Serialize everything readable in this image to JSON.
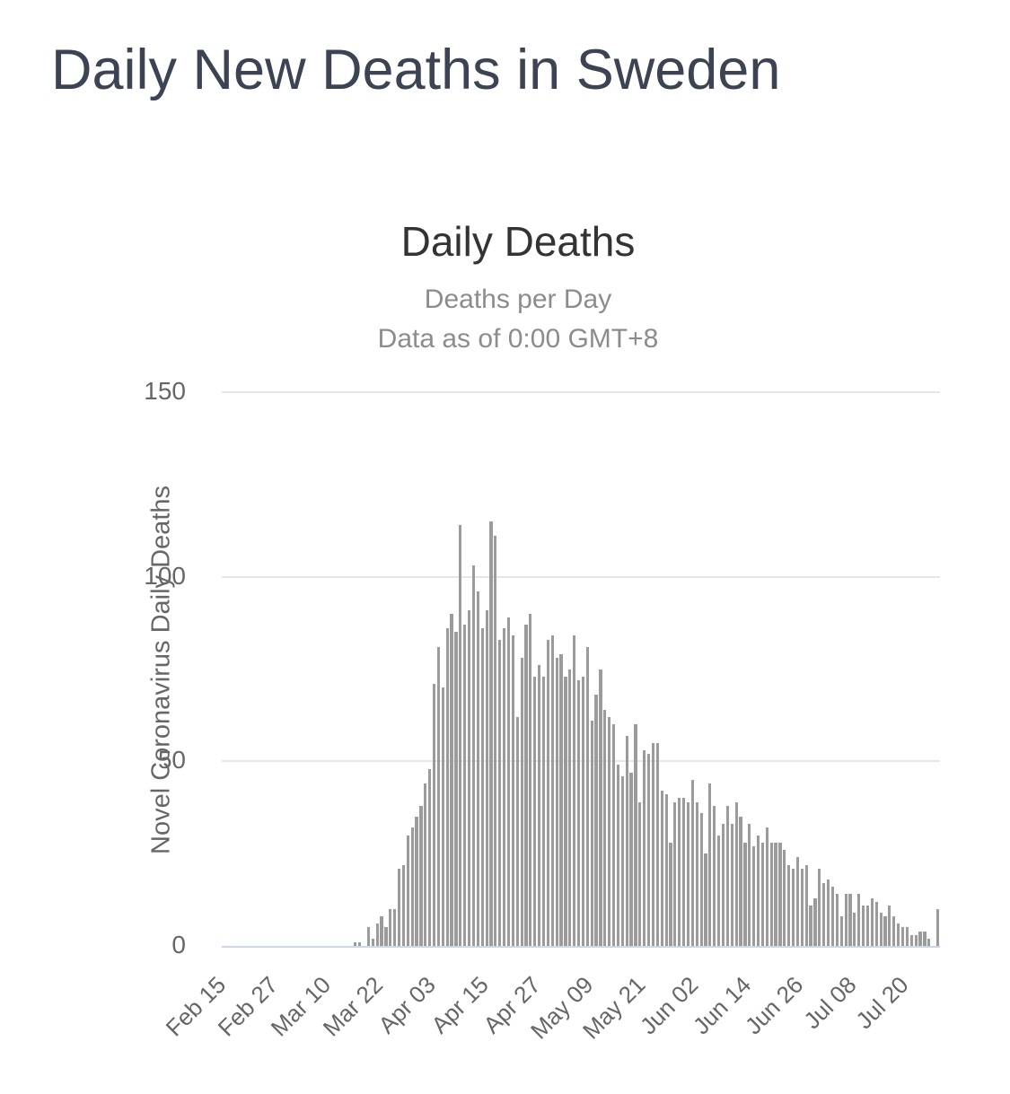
{
  "page": {
    "title": "Daily New Deaths in Sweden"
  },
  "chart": {
    "title": "Daily Deaths",
    "subtitle_line1": "Deaths per Day",
    "subtitle_line2": "Data as of 0:00 GMT+8",
    "y_axis_title": "Novel Coronavirus Daily Deaths"
  },
  "colors": {
    "page_title_text": "#3C4353",
    "chart_title_text": "#333333",
    "subtitle_text": "#8C8C8C",
    "axis_text": "#666666",
    "bar": "#9B9B9B",
    "gridline": "#E6E6E6",
    "axis_line": "#CCD6EB"
  },
  "chart_data": {
    "type": "bar",
    "title": "Daily Deaths",
    "subtitle": [
      "Deaths per Day",
      "Data as of 0:00 GMT+8"
    ],
    "ylabel": "Novel Coronavirus Daily Deaths",
    "ylim": [
      0,
      150
    ],
    "yticks": [
      0,
      50,
      100,
      150
    ],
    "grid": true,
    "legend": false,
    "x_start": "Feb 15",
    "x_end": "Jul 27",
    "xtick_every_days": 12,
    "xtick_labels": [
      "Feb 15",
      "Feb 27",
      "Mar 10",
      "Mar 22",
      "Apr 03",
      "Apr 15",
      "Apr 27",
      "May 09",
      "May 21",
      "Jun 02",
      "Jun 14",
      "Jun 26",
      "Jul 08",
      "Jul 20"
    ],
    "bar_color": "#9B9B9B",
    "values": [
      0,
      0,
      0,
      0,
      0,
      0,
      0,
      0,
      0,
      0,
      0,
      0,
      0,
      0,
      0,
      0,
      0,
      0,
      0,
      0,
      0,
      0,
      0,
      0,
      0,
      0,
      0,
      0,
      0,
      0,
      1,
      1,
      0,
      5,
      2,
      6,
      8,
      5,
      10,
      10,
      21,
      22,
      30,
      32,
      35,
      38,
      44,
      48,
      71,
      81,
      70,
      86,
      90,
      85,
      114,
      87,
      91,
      103,
      96,
      86,
      91,
      115,
      111,
      83,
      86,
      89,
      84,
      62,
      78,
      87,
      90,
      73,
      76,
      73,
      83,
      84,
      78,
      79,
      73,
      75,
      84,
      72,
      73,
      81,
      61,
      68,
      75,
      64,
      62,
      60,
      49,
      46,
      57,
      47,
      60,
      39,
      53,
      52,
      55,
      55,
      42,
      41,
      28,
      39,
      40,
      40,
      39,
      45,
      39,
      36,
      25,
      44,
      38,
      30,
      33,
      38,
      33,
      39,
      35,
      28,
      33,
      27,
      30,
      28,
      32,
      28,
      28,
      28,
      26,
      22,
      21,
      24,
      21,
      22,
      11,
      13,
      21,
      17,
      18,
      16,
      14,
      8,
      14,
      14,
      9,
      14,
      11,
      11,
      13,
      12,
      9,
      8,
      11,
      8,
      6,
      5,
      5,
      3,
      3,
      4,
      4,
      2,
      0,
      10
    ]
  }
}
